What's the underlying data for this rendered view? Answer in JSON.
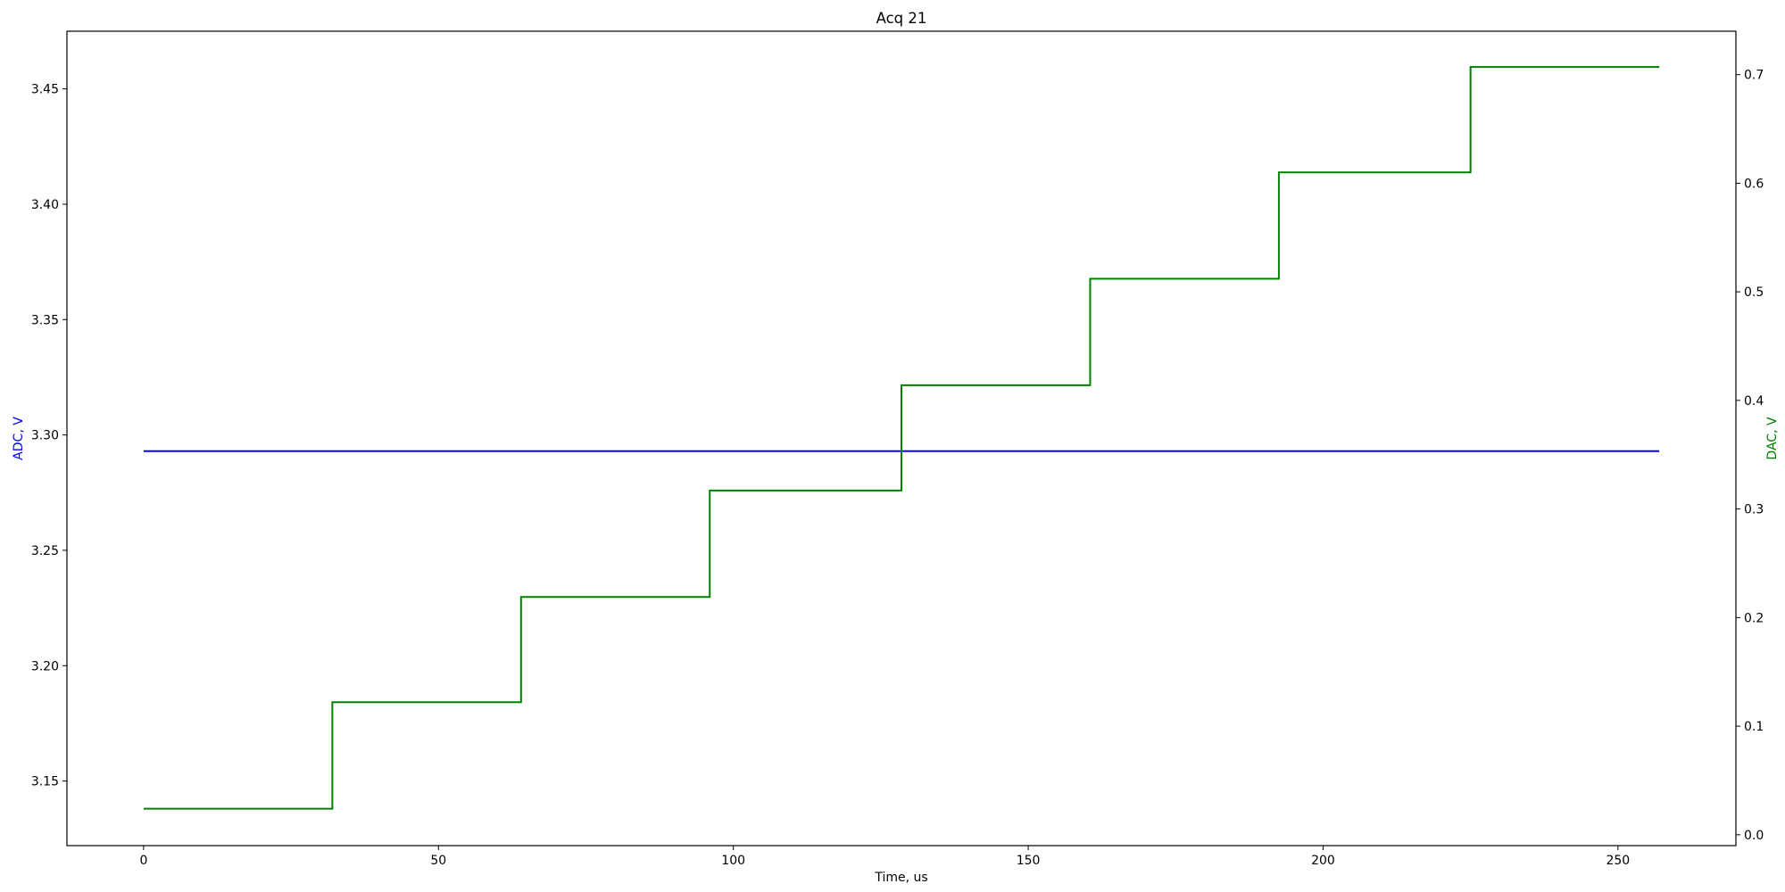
{
  "chart_data": {
    "type": "line",
    "title": "Acq 21",
    "xlabel": "Time, us",
    "ylabel_left": "ADC, V",
    "ylabel_right": "DAC, V",
    "xlim": [
      -13,
      270
    ],
    "ylim_left": [
      3.122,
      3.475
    ],
    "ylim_right": [
      -0.01,
      0.74
    ],
    "x_ticks": [
      0,
      50,
      100,
      150,
      200,
      250
    ],
    "y_ticks_left": [
      3.15,
      3.2,
      3.25,
      3.3,
      3.35,
      3.4,
      3.45
    ],
    "y_ticks_right": [
      0.0,
      0.1,
      0.2,
      0.3,
      0.4,
      0.5,
      0.6,
      0.7
    ],
    "grid": false,
    "colors": {
      "adc": "#0000ff",
      "dac": "#008000",
      "axis": "#000000"
    },
    "series": [
      {
        "axis": "left",
        "x": [
          0,
          257
        ],
        "y": [
          3.293,
          3.293
        ]
      },
      {
        "axis": "right",
        "x": [
          0,
          32,
          32,
          64,
          64,
          96,
          96,
          128.5,
          128.5,
          160.5,
          160.5,
          192.5,
          192.5,
          225,
          225,
          257
        ],
        "y": [
          0.024,
          0.024,
          0.122,
          0.122,
          0.219,
          0.219,
          0.317,
          0.317,
          0.414,
          0.414,
          0.512,
          0.512,
          0.61,
          0.61,
          0.707,
          0.707
        ]
      }
    ]
  }
}
